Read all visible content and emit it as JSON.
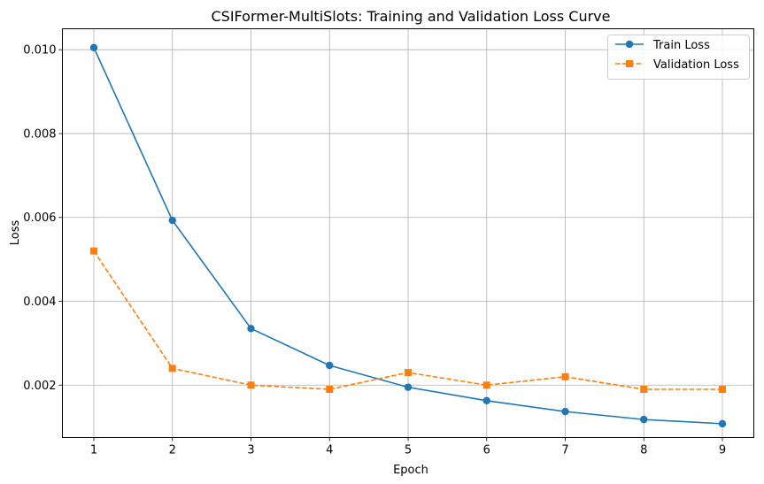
{
  "chart_data": {
    "type": "line",
    "title": "CSIFormer-MultiSlots: Training and Validation Loss Curve",
    "xlabel": "Epoch",
    "ylabel": "Loss",
    "x": [
      1,
      2,
      3,
      4,
      5,
      6,
      7,
      8,
      9
    ],
    "xlim": [
      0.6,
      9.4
    ],
    "ylim": [
      0.00075,
      0.0105
    ],
    "xticks": [
      "1",
      "2",
      "3",
      "4",
      "5",
      "6",
      "7",
      "8",
      "9"
    ],
    "yticks": [
      {
        "value": 0.002,
        "label": "0.002"
      },
      {
        "value": 0.004,
        "label": "0.004"
      },
      {
        "value": 0.006,
        "label": "0.006"
      },
      {
        "value": 0.008,
        "label": "0.008"
      },
      {
        "value": 0.01,
        "label": "0.010"
      }
    ],
    "grid": true,
    "legend_position": "top-right",
    "series": [
      {
        "name": "Train Loss",
        "color": "#1f77b4",
        "marker": "circle",
        "linestyle": "solid",
        "values": [
          0.01005,
          0.00593,
          0.00335,
          0.00247,
          0.00195,
          0.00163,
          0.00137,
          0.00118,
          0.00108
        ]
      },
      {
        "name": "Validation Loss",
        "color": "#ff7f0e",
        "marker": "square",
        "linestyle": "dashed",
        "values": [
          0.0052,
          0.0024,
          0.002,
          0.0019,
          0.0023,
          0.002,
          0.0022,
          0.0019,
          0.0019
        ]
      }
    ]
  }
}
